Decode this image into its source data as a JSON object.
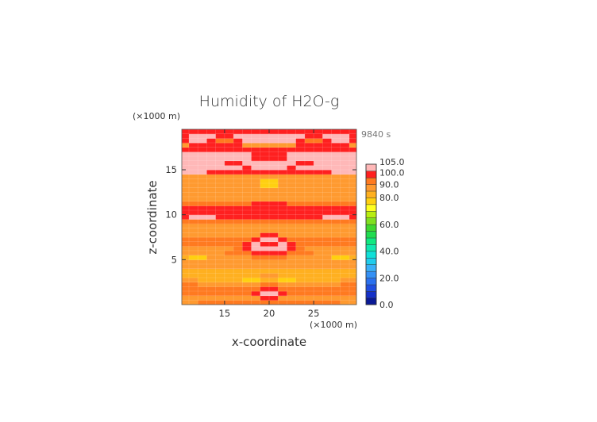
{
  "chart_data": {
    "type": "heatmap",
    "title": "Humidity of H2O-g",
    "xlabel": "x-coordinate",
    "ylabel": "z-coordinate",
    "x_unit_label": "(×1000 m)",
    "y_unit_label": "(×1000 m)",
    "time_label": "9840 s",
    "xlim": [
      10.2,
      29.8
    ],
    "ylim": [
      0,
      19.5
    ],
    "x_ticks": [
      15,
      20,
      25
    ],
    "y_ticks": [
      5,
      10,
      15
    ],
    "colorbar": {
      "levels": [
        0,
        5,
        10,
        15,
        20,
        25,
        30,
        35,
        40,
        45,
        50,
        55,
        60,
        65,
        70,
        75,
        80,
        85,
        90,
        95,
        100,
        105
      ],
      "colors": [
        "#0a1a96",
        "#1530c8",
        "#1f4ee0",
        "#2a70ee",
        "#3490f5",
        "#3ab0f8",
        "#20ccec",
        "#10e0d8",
        "#10e8b0",
        "#10e880",
        "#20dc50",
        "#40d830",
        "#80e020",
        "#b8ee10",
        "#ffff20",
        "#ffd010",
        "#ffb020",
        "#ff9a30",
        "#ff7a20",
        "#ff2020",
        "#ffb8b8"
      ],
      "tick_labels": [
        "0.0",
        "20.0",
        "40.0",
        "60.0",
        "80.0",
        "90.0",
        "100.0",
        "105.0"
      ],
      "tick_values": [
        0,
        20,
        40,
        60,
        80,
        90,
        100,
        105
      ]
    },
    "grid_x": [
      10.5,
      11.5,
      12.5,
      13.5,
      14.5,
      15.5,
      16.5,
      17.5,
      18.5,
      19.5,
      20.5,
      21.5,
      22.5,
      23.5,
      24.5,
      25.5,
      26.5,
      27.5,
      28.5,
      29.5
    ],
    "grid_z": [
      0.25,
      0.75,
      1.25,
      1.75,
      2.25,
      2.75,
      3.25,
      3.75,
      4.25,
      4.75,
      5.25,
      5.75,
      6.25,
      6.75,
      7.25,
      7.75,
      8.25,
      8.75,
      9.25,
      9.75,
      10.25,
      10.75,
      11.25,
      11.75,
      12.25,
      12.75,
      13.25,
      13.75,
      14.25,
      14.75,
      15.25,
      15.75,
      16.25,
      16.75,
      17.25,
      17.75,
      18.25,
      18.75,
      19.25
    ],
    "values": [
      [
        89,
        89,
        90,
        90,
        90,
        90,
        91,
        91,
        91,
        91,
        91,
        91,
        91,
        91,
        90,
        90,
        90,
        90,
        89,
        89
      ],
      [
        87,
        87,
        87,
        88,
        88,
        88,
        88,
        88,
        88,
        98,
        98,
        88,
        88,
        88,
        88,
        88,
        88,
        88,
        87,
        87
      ],
      [
        90,
        90,
        90,
        90,
        90,
        90,
        90,
        90,
        98,
        100,
        100,
        98,
        90,
        90,
        90,
        90,
        90,
        90,
        90,
        90
      ],
      [
        90,
        90,
        90,
        90,
        90,
        90,
        90,
        90,
        90,
        96,
        96,
        90,
        90,
        90,
        90,
        90,
        90,
        90,
        90,
        90
      ],
      [
        92,
        92,
        85,
        85,
        85,
        85,
        85,
        85,
        88,
        92,
        92,
        88,
        85,
        85,
        85,
        85,
        85,
        85,
        92,
        92
      ],
      [
        88,
        88,
        80,
        80,
        80,
        80,
        80,
        79,
        79,
        82,
        82,
        79,
        79,
        80,
        80,
        80,
        80,
        80,
        88,
        88
      ],
      [
        84,
        84,
        84,
        84,
        84,
        84,
        84,
        84,
        84,
        86,
        86,
        84,
        84,
        84,
        84,
        84,
        84,
        84,
        84,
        84
      ],
      [
        84,
        84,
        84,
        84,
        84,
        84,
        84,
        84,
        84,
        84,
        84,
        84,
        84,
        84,
        84,
        84,
        84,
        84,
        84,
        84
      ],
      [
        87,
        87,
        87,
        87,
        87,
        87,
        87,
        87,
        87,
        87,
        87,
        87,
        87,
        87,
        87,
        87,
        87,
        87,
        87,
        87
      ],
      [
        87,
        87,
        85,
        85,
        85,
        85,
        85,
        85,
        85,
        87,
        87,
        85,
        85,
        85,
        85,
        85,
        85,
        85,
        87,
        87
      ],
      [
        81,
        78,
        78,
        85,
        85,
        88,
        88,
        88,
        92,
        92,
        92,
        92,
        88,
        88,
        88,
        85,
        85,
        78,
        78,
        81
      ],
      [
        86,
        86,
        86,
        86,
        88,
        91,
        91,
        91,
        98,
        96,
        96,
        98,
        91,
        91,
        91,
        88,
        86,
        86,
        86,
        86
      ],
      [
        88,
        88,
        86,
        86,
        88,
        88,
        92,
        98,
        100,
        100,
        100,
        100,
        98,
        92,
        88,
        88,
        86,
        86,
        88,
        88
      ],
      [
        90,
        90,
        90,
        90,
        90,
        90,
        90,
        98,
        100,
        98,
        98,
        100,
        98,
        90,
        90,
        90,
        90,
        90,
        90,
        90
      ],
      [
        90,
        90,
        90,
        90,
        90,
        90,
        90,
        90,
        98,
        100,
        100,
        98,
        90,
        90,
        90,
        90,
        90,
        90,
        90,
        90
      ],
      [
        88,
        88,
        88,
        88,
        88,
        88,
        88,
        88,
        88,
        98,
        98,
        88,
        88,
        88,
        88,
        88,
        88,
        88,
        88,
        88
      ],
      [
        87,
        87,
        87,
        87,
        87,
        87,
        87,
        87,
        88,
        88,
        88,
        88,
        87,
        87,
        87,
        87,
        87,
        87,
        87,
        87
      ],
      [
        87,
        87,
        87,
        87,
        87,
        87,
        87,
        87,
        87,
        87,
        87,
        87,
        87,
        87,
        87,
        87,
        87,
        87,
        87,
        87
      ],
      [
        92,
        92,
        92,
        92,
        92,
        92,
        92,
        92,
        92,
        92,
        92,
        92,
        92,
        92,
        92,
        92,
        92,
        92,
        92,
        92
      ],
      [
        96,
        100,
        100,
        100,
        98,
        96,
        96,
        96,
        96,
        96,
        96,
        96,
        96,
        96,
        96,
        98,
        100,
        100,
        100,
        96
      ],
      [
        95,
        95,
        95,
        95,
        95,
        96,
        96,
        96,
        96,
        96,
        96,
        96,
        96,
        96,
        96,
        95,
        95,
        95,
        95,
        95
      ],
      [
        96,
        96,
        96,
        96,
        96,
        96,
        96,
        96,
        96,
        96,
        96,
        96,
        96,
        96,
        96,
        96,
        96,
        96,
        96,
        96
      ],
      [
        94,
        94,
        94,
        92,
        92,
        92,
        92,
        94,
        96,
        96,
        96,
        96,
        94,
        92,
        92,
        92,
        92,
        94,
        94,
        94
      ],
      [
        88,
        88,
        88,
        88,
        88,
        88,
        88,
        88,
        88,
        88,
        88,
        88,
        88,
        88,
        88,
        88,
        88,
        88,
        88,
        88
      ],
      [
        88,
        88,
        88,
        88,
        88,
        88,
        88,
        88,
        88,
        88,
        88,
        88,
        88,
        88,
        88,
        88,
        88,
        88,
        88,
        88
      ],
      [
        88,
        88,
        88,
        88,
        88,
        88,
        88,
        88,
        88,
        88,
        88,
        88,
        88,
        88,
        88,
        88,
        88,
        88,
        88,
        88
      ],
      [
        86,
        86,
        86,
        86,
        86,
        86,
        86,
        86,
        86,
        79,
        79,
        86,
        86,
        86,
        86,
        86,
        86,
        86,
        86,
        86
      ],
      [
        86,
        86,
        86,
        86,
        86,
        86,
        86,
        86,
        86,
        79,
        79,
        86,
        86,
        86,
        86,
        86,
        86,
        86,
        86,
        86
      ],
      [
        88,
        88,
        88,
        88,
        88,
        88,
        88,
        88,
        88,
        88,
        88,
        88,
        88,
        88,
        88,
        88,
        88,
        88,
        88,
        88
      ],
      [
        100,
        100,
        100,
        96,
        96,
        96,
        96,
        96,
        96,
        96,
        96,
        96,
        96,
        96,
        96,
        96,
        96,
        100,
        100,
        100
      ],
      [
        100,
        100,
        100,
        100,
        100,
        100,
        100,
        98,
        100,
        100,
        100,
        100,
        98,
        100,
        100,
        100,
        100,
        100,
        100,
        100
      ],
      [
        100,
        100,
        100,
        100,
        100,
        98,
        98,
        100,
        100,
        100,
        100,
        100,
        100,
        98,
        98,
        100,
        100,
        100,
        100,
        100
      ],
      [
        100,
        100,
        100,
        100,
        100,
        100,
        100,
        100,
        96,
        96,
        96,
        96,
        100,
        100,
        100,
        100,
        100,
        100,
        100,
        100
      ],
      [
        100,
        100,
        100,
        100,
        100,
        100,
        100,
        100,
        96,
        96,
        96,
        96,
        100,
        100,
        100,
        100,
        100,
        100,
        100,
        100
      ],
      [
        96,
        96,
        96,
        96,
        96,
        96,
        96,
        96,
        96,
        96,
        96,
        96,
        96,
        96,
        96,
        96,
        96,
        96,
        96,
        96
      ],
      [
        86,
        96,
        96,
        96,
        96,
        96,
        96,
        86,
        86,
        86,
        86,
        86,
        86,
        96,
        96,
        96,
        96,
        96,
        96,
        86
      ],
      [
        96,
        100,
        100,
        96,
        90,
        90,
        96,
        100,
        100,
        100,
        100,
        100,
        100,
        96,
        90,
        90,
        96,
        100,
        100,
        96
      ],
      [
        96,
        100,
        100,
        100,
        96,
        96,
        100,
        100,
        100,
        100,
        100,
        100,
        100,
        100,
        96,
        96,
        100,
        100,
        100,
        96
      ],
      [
        96,
        96,
        96,
        96,
        96,
        96,
        96,
        96,
        96,
        96,
        96,
        96,
        96,
        96,
        96,
        96,
        96,
        96,
        96,
        96
      ]
    ]
  }
}
